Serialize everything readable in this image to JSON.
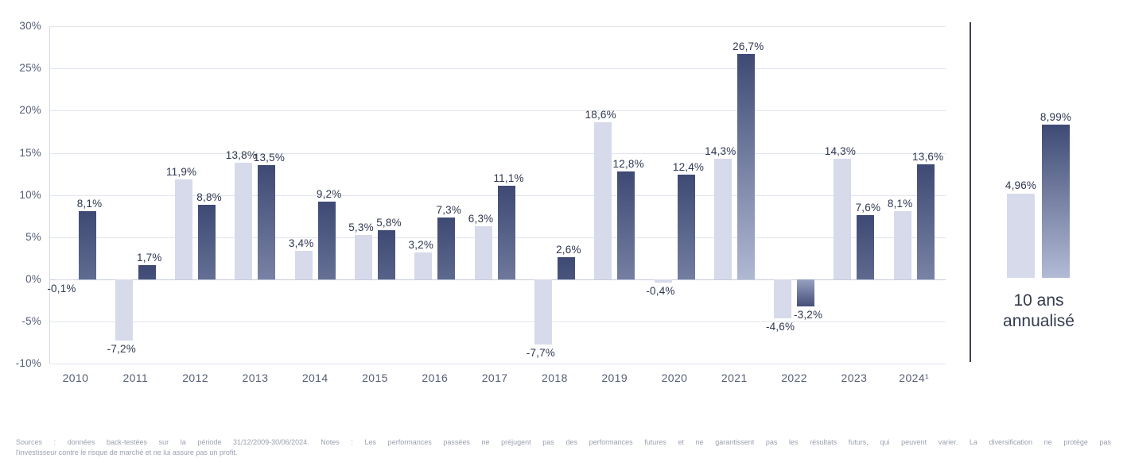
{
  "chart_data": {
    "type": "bar",
    "title": "",
    "categories": [
      "2010",
      "2011",
      "2012",
      "2013",
      "2014",
      "2015",
      "2016",
      "2017",
      "2018",
      "2019",
      "2020",
      "2021",
      "2022",
      "2023",
      "2024¹"
    ],
    "series": [
      {
        "name": "serie-claire",
        "color_key": "light",
        "values": [
          -0.1,
          -7.2,
          11.9,
          13.8,
          3.4,
          5.3,
          3.2,
          6.3,
          -7.7,
          18.6,
          -0.4,
          14.3,
          -4.6,
          14.3,
          8.1
        ],
        "labels": [
          "-0,1%",
          "-7,2%",
          "11,9%",
          "13,8%",
          "3,4%",
          "5,3%",
          "3,2%",
          "6,3%",
          "-7,7%",
          "18,6%",
          "-0,4%",
          "14,3%",
          "-4,6%",
          "14,3%",
          "8,1%"
        ]
      },
      {
        "name": "serie-foncee",
        "color_key": "dark",
        "values": [
          8.1,
          1.7,
          8.8,
          13.5,
          9.2,
          5.8,
          7.3,
          11.1,
          2.6,
          12.8,
          12.4,
          26.7,
          -3.2,
          7.6,
          13.6
        ],
        "labels": [
          "8,1%",
          "1,7%",
          "8,8%",
          "13,5%",
          "9,2%",
          "5,8%",
          "7,3%",
          "11,1%",
          "2,6%",
          "12,8%",
          "12,4%",
          "26,7%",
          "-3,2%",
          "7,6%",
          "13,6%"
        ]
      }
    ],
    "y_axis": {
      "range": [
        -10,
        30
      ],
      "grid": true,
      "ticks": [
        {
          "value": 30,
          "label": "30%"
        },
        {
          "value": 25,
          "label": "25%"
        },
        {
          "value": 20,
          "label": "20%"
        },
        {
          "value": 15,
          "label": "15%"
        },
        {
          "value": 10,
          "label": "10%"
        },
        {
          "value": 5,
          "label": "5%"
        },
        {
          "value": 0,
          "label": "0%"
        },
        {
          "value": -5,
          "label": "-5%"
        },
        {
          "value": -10,
          "label": "-10%"
        }
      ]
    },
    "legend": "none",
    "annualized": {
      "caption": "10 ans annualisé",
      "bars": [
        {
          "series": "serie-claire",
          "value": 4.96,
          "label": "4,96%"
        },
        {
          "series": "serie-foncee",
          "value": 8.99,
          "label": "8,99%"
        }
      ]
    }
  },
  "footer": {
    "line1": "Sources : données back-testées sur la période 31/12/2009-30/06/2024. Notes : Les performances passées ne préjugent pas des performances futures et ne garantissent pas les résultats futurs, qui peuvent varier. La diversification ne protège pas",
    "line2": "l'investisseur contre le risque de marché et ne lui assure pas un profit."
  },
  "colors": {
    "light_bar": "#d6daea",
    "dark_top": "#3e4a74",
    "dark_bottom": "#b2bbd5",
    "neg_top": "#96a1c1",
    "neg_bottom": "#454f79",
    "grid": "#e2e5ee",
    "zero_line": "#c6ccda",
    "axis_line": "#d3d8e4",
    "axis_label": "#565e76",
    "data_label": "#2f3750",
    "caption": "#333a4e",
    "divider": "#3c4250",
    "footnote": "#99a0af"
  }
}
